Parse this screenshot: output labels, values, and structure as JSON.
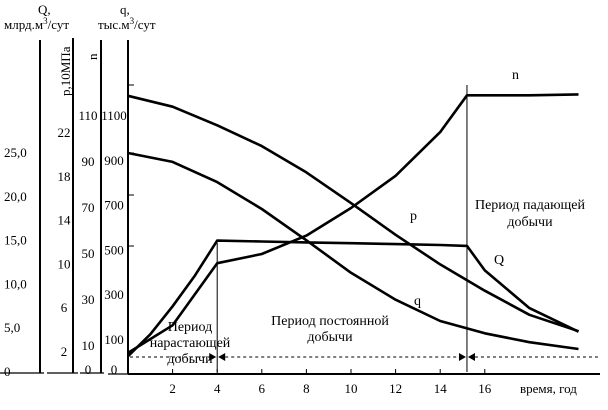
{
  "chart_data": {
    "type": "line",
    "xlabel": "время, год",
    "x_ticks": [
      "2",
      "4",
      "6",
      "8",
      "10",
      "12",
      "14",
      "16"
    ],
    "xlim": [
      0,
      20
    ],
    "axes": [
      {
        "key": "Q",
        "label_line1": "Q,",
        "label_line2": "млрд.м",
        "label_sup": "3",
        "label_tail": "/сут",
        "ticks": [
          "0",
          "5,0",
          "10,0",
          "15,0",
          "20,0",
          "25,0"
        ],
        "range": [
          0,
          30
        ]
      },
      {
        "key": "p",
        "label": "р,10МПа",
        "ticks": [
          "2",
          "6",
          "10",
          "14",
          "18",
          "22"
        ],
        "range": [
          0,
          26
        ]
      },
      {
        "key": "n",
        "label": "n",
        "ticks": [
          "0",
          "10",
          "30",
          "50",
          "70",
          "90",
          "110"
        ],
        "range": [
          0,
          130
        ]
      },
      {
        "key": "q",
        "label_line1": "q,",
        "label_line2": "тыс.м",
        "label_sup": "3",
        "label_tail": "/сут",
        "ticks": [
          "0",
          "100",
          "300",
          "500",
          "700",
          "900",
          "1100"
        ],
        "range": [
          0,
          1300
        ]
      }
    ],
    "series": [
      {
        "name": "n",
        "axis": "n",
        "x": [
          0,
          2,
          4,
          6,
          8,
          10,
          12,
          14,
          15.2,
          16,
          18,
          20.2
        ],
        "y": [
          7,
          19,
          46,
          50,
          58,
          70,
          84,
          103,
          119,
          119,
          119,
          119.4
        ]
      },
      {
        "name": "p",
        "axis": "p",
        "x": [
          0,
          2,
          4,
          6,
          8,
          10,
          12,
          14,
          16,
          18,
          20.2
        ],
        "y": [
          25.4,
          24.4,
          22.7,
          20.8,
          18.4,
          15.6,
          12.7,
          10.0,
          7.6,
          5.4,
          3.9
        ]
      },
      {
        "name": "Q",
        "axis": "Q",
        "x": [
          0,
          1,
          2,
          3,
          4,
          6,
          8,
          10,
          12,
          14,
          15.2,
          16,
          18,
          20.2
        ],
        "y": [
          1.8,
          4.3,
          7.5,
          11.0,
          15.0,
          14.9,
          14.8,
          14.7,
          14.6,
          14.5,
          14.4,
          11.6,
          7.3,
          4.6
        ]
      },
      {
        "name": "q",
        "axis": "q",
        "x": [
          0,
          2,
          4,
          6,
          8,
          10,
          12,
          14,
          16,
          18,
          20.2
        ],
        "y": [
          935,
          895,
          805,
          685,
          545,
          400,
          280,
          185,
          130,
          90,
          60
        ]
      }
    ],
    "periods": [
      {
        "line1": "Период",
        "line2": "нарастающей",
        "line3": "добычи"
      },
      {
        "line1": "Период постоянной",
        "line2": "добычи"
      },
      {
        "line1": "Период падающей",
        "line2": "добычи"
      }
    ],
    "boundaries_x": [
      4,
      15.2
    ],
    "grid": false
  }
}
